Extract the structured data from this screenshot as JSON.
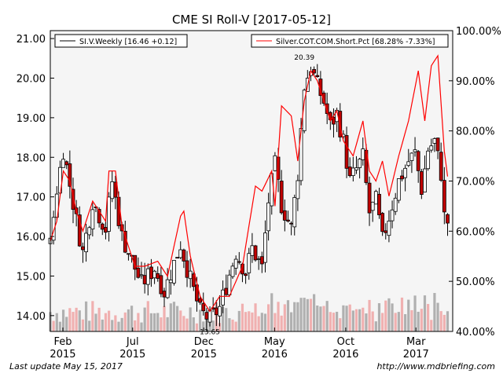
{
  "footer": {
    "update": "Last update May 15, 2017",
    "url": "http://www.mdbriefing.com"
  },
  "chart_data": {
    "type": "candlestick+line+bar",
    "title": "CME SI Roll-V  [2017-05-12]",
    "colors": {
      "up_candle": "#ffffff",
      "down_candle": "#c00000",
      "wick": "#000000",
      "cot_line": "#ff0000",
      "volume_gray": "#b0b0b0",
      "volume_pink": "#f0b0b0",
      "plot_bg": "#f5f5f5"
    },
    "x_ticks": [
      {
        "line1": "Feb",
        "line2": "2015",
        "date": "2015-02-01"
      },
      {
        "line1": "Jul",
        "line2": "2015",
        "date": "2015-07-01"
      },
      {
        "line1": "Dec",
        "line2": "2015",
        "date": "2015-12-01"
      },
      {
        "line1": "May",
        "line2": "2016",
        "date": "2016-05-01"
      },
      {
        "line1": "Oct",
        "line2": "2016",
        "date": "2016-10-01"
      },
      {
        "line1": "Mar",
        "line2": "2017",
        "date": "2017-03-01"
      }
    ],
    "x_range": [
      "2015-01-05",
      "2017-05-19"
    ],
    "y_left": {
      "range": [
        13.6,
        21.2
      ],
      "ticks": [
        "14.00",
        "15.00",
        "16.00",
        "17.00",
        "18.00",
        "19.00",
        "20.00",
        "21.00"
      ]
    },
    "y_right": {
      "range": [
        40,
        100
      ],
      "ticks": [
        "40.00%",
        "50.00%",
        "60.00%",
        "70.00%",
        "80.00%",
        "90.00%",
        "100.00%"
      ]
    },
    "legend": {
      "left": "SI.V.Weekly [16.46 +0.12]",
      "right": "Silver.COT.COM.Short.Pct [68.28% -7.33%]"
    },
    "annotations": [
      {
        "text": "20.39",
        "date": "2016-07-04",
        "value": 20.39
      },
      {
        "text": "13.65",
        "date": "2015-12-14",
        "value": 13.65
      }
    ],
    "price_anchors": [
      {
        "date": "2015-01-05",
        "value": 15.8
      },
      {
        "date": "2015-01-19",
        "value": 17.2
      },
      {
        "date": "2015-02-02",
        "value": 18.2
      },
      {
        "date": "2015-03-02",
        "value": 16.4
      },
      {
        "date": "2015-03-16",
        "value": 15.6
      },
      {
        "date": "2015-04-06",
        "value": 16.9
      },
      {
        "date": "2015-05-04",
        "value": 16.2
      },
      {
        "date": "2015-05-18",
        "value": 17.4
      },
      {
        "date": "2015-06-08",
        "value": 16.0
      },
      {
        "date": "2015-07-06",
        "value": 15.2
      },
      {
        "date": "2015-07-20",
        "value": 14.8
      },
      {
        "date": "2015-08-17",
        "value": 15.2
      },
      {
        "date": "2015-09-07",
        "value": 14.6
      },
      {
        "date": "2015-10-12",
        "value": 15.8
      },
      {
        "date": "2015-11-02",
        "value": 14.9
      },
      {
        "date": "2015-11-23",
        "value": 14.1
      },
      {
        "date": "2015-12-14",
        "value": 13.9
      },
      {
        "date": "2016-01-04",
        "value": 14.2
      },
      {
        "date": "2016-02-08",
        "value": 15.6
      },
      {
        "date": "2016-02-29",
        "value": 15.1
      },
      {
        "date": "2016-03-14",
        "value": 15.7
      },
      {
        "date": "2016-04-04",
        "value": 15.2
      },
      {
        "date": "2016-04-18",
        "value": 16.9
      },
      {
        "date": "2016-05-02",
        "value": 17.8
      },
      {
        "date": "2016-05-16",
        "value": 16.8
      },
      {
        "date": "2016-06-06",
        "value": 16.2
      },
      {
        "date": "2016-06-20",
        "value": 17.6
      },
      {
        "date": "2016-07-04",
        "value": 19.8
      },
      {
        "date": "2016-07-18",
        "value": 20.3
      },
      {
        "date": "2016-08-01",
        "value": 19.8
      },
      {
        "date": "2016-08-15",
        "value": 19.4
      },
      {
        "date": "2016-08-29",
        "value": 18.8
      },
      {
        "date": "2016-09-12",
        "value": 19.1
      },
      {
        "date": "2016-09-26",
        "value": 18.4
      },
      {
        "date": "2016-10-10",
        "value": 17.4
      },
      {
        "date": "2016-10-24",
        "value": 17.7
      },
      {
        "date": "2016-11-07",
        "value": 18.0
      },
      {
        "date": "2016-11-21",
        "value": 16.6
      },
      {
        "date": "2016-12-05",
        "value": 16.9
      },
      {
        "date": "2016-12-19",
        "value": 15.9
      },
      {
        "date": "2017-01-02",
        "value": 16.5
      },
      {
        "date": "2017-01-23",
        "value": 17.4
      },
      {
        "date": "2017-02-13",
        "value": 17.9
      },
      {
        "date": "2017-02-27",
        "value": 18.1
      },
      {
        "date": "2017-03-13",
        "value": 17.2
      },
      {
        "date": "2017-03-27",
        "value": 18.2
      },
      {
        "date": "2017-04-10",
        "value": 18.4
      },
      {
        "date": "2017-04-24",
        "value": 17.6
      },
      {
        "date": "2017-05-01",
        "value": 16.5
      },
      {
        "date": "2017-05-12",
        "value": 16.3
      }
    ],
    "cot_anchors": [
      {
        "date": "2015-01-05",
        "value": 58
      },
      {
        "date": "2015-01-19",
        "value": 62
      },
      {
        "date": "2015-02-02",
        "value": 72
      },
      {
        "date": "2015-02-16",
        "value": 70
      },
      {
        "date": "2015-03-02",
        "value": 64
      },
      {
        "date": "2015-03-16",
        "value": 60
      },
      {
        "date": "2015-04-06",
        "value": 66
      },
      {
        "date": "2015-05-04",
        "value": 62
      },
      {
        "date": "2015-05-11",
        "value": 72
      },
      {
        "date": "2015-05-25",
        "value": 72
      },
      {
        "date": "2015-06-08",
        "value": 61
      },
      {
        "date": "2015-07-06",
        "value": 53
      },
      {
        "date": "2015-07-27",
        "value": 53
      },
      {
        "date": "2015-08-24",
        "value": 54
      },
      {
        "date": "2015-09-14",
        "value": 51
      },
      {
        "date": "2015-10-12",
        "value": 63
      },
      {
        "date": "2015-10-19",
        "value": 64
      },
      {
        "date": "2015-11-02",
        "value": 55
      },
      {
        "date": "2015-11-23",
        "value": 47
      },
      {
        "date": "2015-12-14",
        "value": 44
      },
      {
        "date": "2016-01-04",
        "value": 47
      },
      {
        "date": "2016-01-25",
        "value": 47
      },
      {
        "date": "2016-02-22",
        "value": 53
      },
      {
        "date": "2016-03-21",
        "value": 69
      },
      {
        "date": "2016-04-04",
        "value": 68
      },
      {
        "date": "2016-04-25",
        "value": 72
      },
      {
        "date": "2016-05-02",
        "value": 65
      },
      {
        "date": "2016-05-16",
        "value": 85
      },
      {
        "date": "2016-06-06",
        "value": 83
      },
      {
        "date": "2016-06-20",
        "value": 74
      },
      {
        "date": "2016-07-04",
        "value": 86
      },
      {
        "date": "2016-07-18",
        "value": 92
      },
      {
        "date": "2016-08-01",
        "value": 90
      },
      {
        "date": "2016-08-15",
        "value": 86
      },
      {
        "date": "2016-08-29",
        "value": 82
      },
      {
        "date": "2016-09-12",
        "value": 84
      },
      {
        "date": "2016-09-26",
        "value": 78
      },
      {
        "date": "2016-10-17",
        "value": 75
      },
      {
        "date": "2016-11-07",
        "value": 82
      },
      {
        "date": "2016-11-21",
        "value": 72
      },
      {
        "date": "2016-12-05",
        "value": 70
      },
      {
        "date": "2016-12-19",
        "value": 74
      },
      {
        "date": "2017-01-02",
        "value": 67
      },
      {
        "date": "2017-01-23",
        "value": 75
      },
      {
        "date": "2017-02-13",
        "value": 82
      },
      {
        "date": "2017-03-06",
        "value": 92
      },
      {
        "date": "2017-03-20",
        "value": 82
      },
      {
        "date": "2017-04-03",
        "value": 93
      },
      {
        "date": "2017-04-17",
        "value": 95
      },
      {
        "date": "2017-05-01",
        "value": 76
      },
      {
        "date": "2017-05-12",
        "value": 68
      }
    ]
  }
}
